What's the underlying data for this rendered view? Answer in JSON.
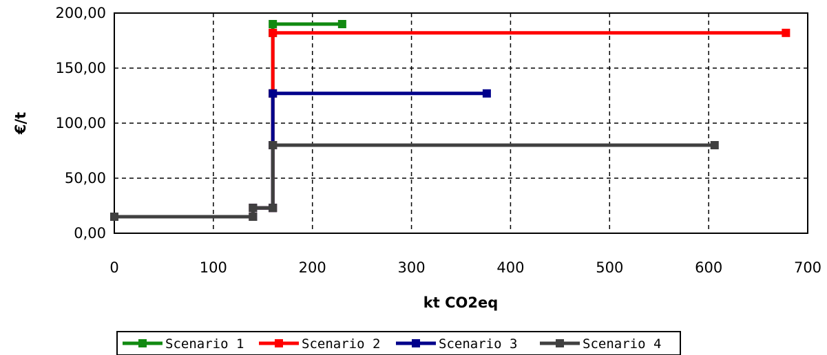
{
  "chart_data": {
    "type": "line",
    "title": "",
    "xlabel": "kt CO2eq",
    "ylabel": "€/t",
    "xlim": [
      0,
      700
    ],
    "ylim": [
      0,
      200
    ],
    "x_ticks": [
      0,
      100,
      200,
      300,
      400,
      500,
      600,
      700
    ],
    "x_tick_labels": [
      "0",
      "100",
      "200",
      "300",
      "400",
      "500",
      "600",
      "700"
    ],
    "y_ticks": [
      0,
      50,
      100,
      150,
      200
    ],
    "y_tick_labels": [
      "0,00",
      "50,00",
      "100,00",
      "150,00",
      "200,00"
    ],
    "grid": true,
    "legend_position": "bottom",
    "series": [
      {
        "name": "Scenario 1",
        "color": "#118a11",
        "x": [
          0,
          140,
          140,
          160,
          160,
          160,
          160,
          160,
          230
        ],
        "y": [
          15,
          15,
          23,
          23,
          80,
          127,
          182,
          190,
          190
        ]
      },
      {
        "name": "Scenario 2",
        "color": "#ff0000",
        "x": [
          0,
          140,
          140,
          160,
          160,
          160,
          160,
          678
        ],
        "y": [
          15,
          15,
          23,
          23,
          80,
          127,
          182,
          182
        ]
      },
      {
        "name": "Scenario 3",
        "color": "#00008b",
        "x": [
          0,
          140,
          140,
          160,
          160,
          160,
          376
        ],
        "y": [
          15,
          15,
          23,
          23,
          80,
          127,
          127
        ]
      },
      {
        "name": "Scenario 4",
        "color": "#404040",
        "x": [
          0,
          140,
          140,
          160,
          160,
          606
        ],
        "y": [
          15,
          15,
          23,
          23,
          80,
          80
        ]
      }
    ]
  }
}
